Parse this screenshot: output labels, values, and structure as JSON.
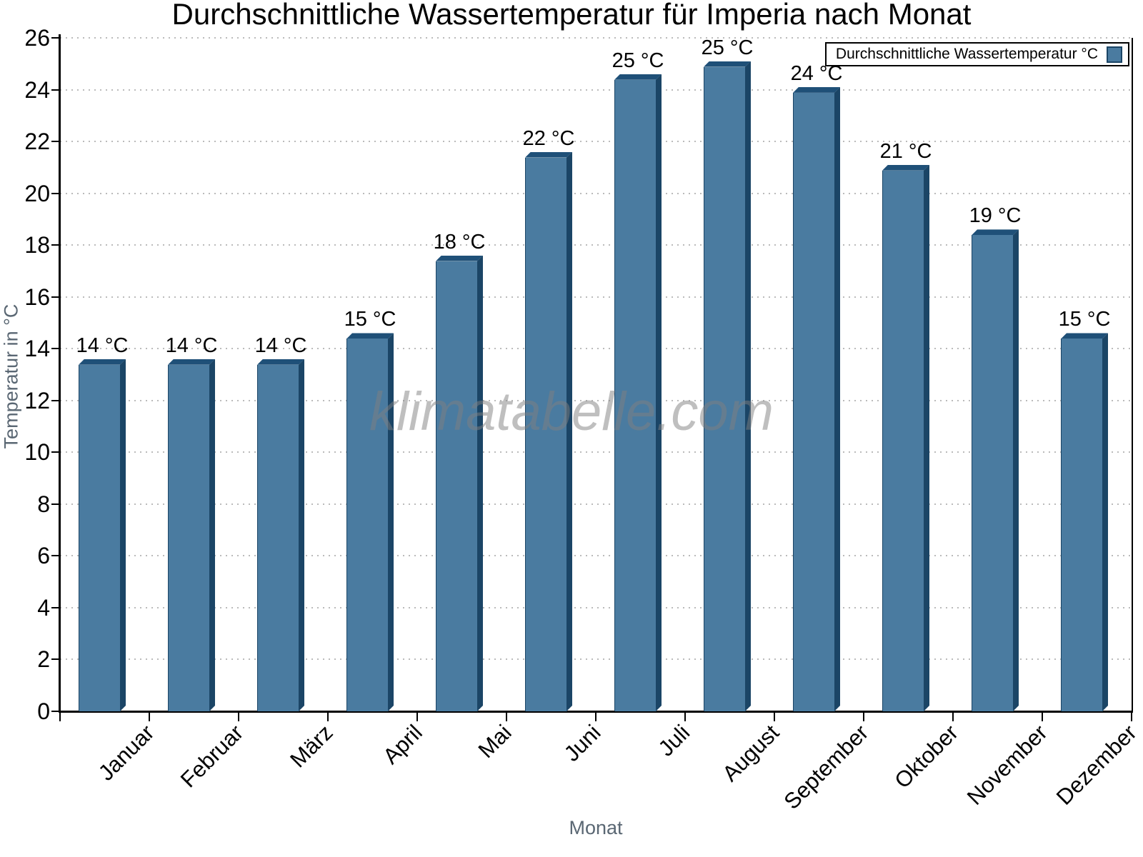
{
  "title": "Durchschnittliche Wassertemperatur für Imperia nach Monat",
  "legend": {
    "label": "Durchschnittliche Wassertemperatur °C"
  },
  "watermark": "klimatabelle.com",
  "chart_data": {
    "type": "bar",
    "title": "Durchschnittliche Wassertemperatur für Imperia nach Monat",
    "xlabel": "Monat",
    "ylabel": "Temperatur in °C",
    "categories": [
      "Januar",
      "Februar",
      "März",
      "April",
      "Mai",
      "Juni",
      "Juli",
      "August",
      "September",
      "Oktober",
      "November",
      "Dezember"
    ],
    "values": [
      13.6,
      13.6,
      13.6,
      14.6,
      17.6,
      21.6,
      24.6,
      25.1,
      24.1,
      21.1,
      18.6,
      14.6
    ],
    "bar_labels": [
      "14 °C",
      "14 °C",
      "14 °C",
      "15 °C",
      "18 °C",
      "22 °C",
      "25 °C",
      "25 °C",
      "24 °C",
      "21 °C",
      "19 °C",
      "15 °C"
    ],
    "ylim": [
      0,
      26
    ],
    "yticks": [
      0,
      2,
      4,
      6,
      8,
      10,
      12,
      14,
      16,
      18,
      20,
      22,
      24,
      26
    ],
    "grid": "dotted horizontal",
    "legend_position": "top-right",
    "colors": {
      "bar": "#4A7BA0",
      "bar_top": "#1F5078",
      "bar_side": "#1B4566",
      "grid": "#BBBBBB",
      "axis": "#000000",
      "axis_title": "#5A6773",
      "watermark": "#808080"
    }
  }
}
